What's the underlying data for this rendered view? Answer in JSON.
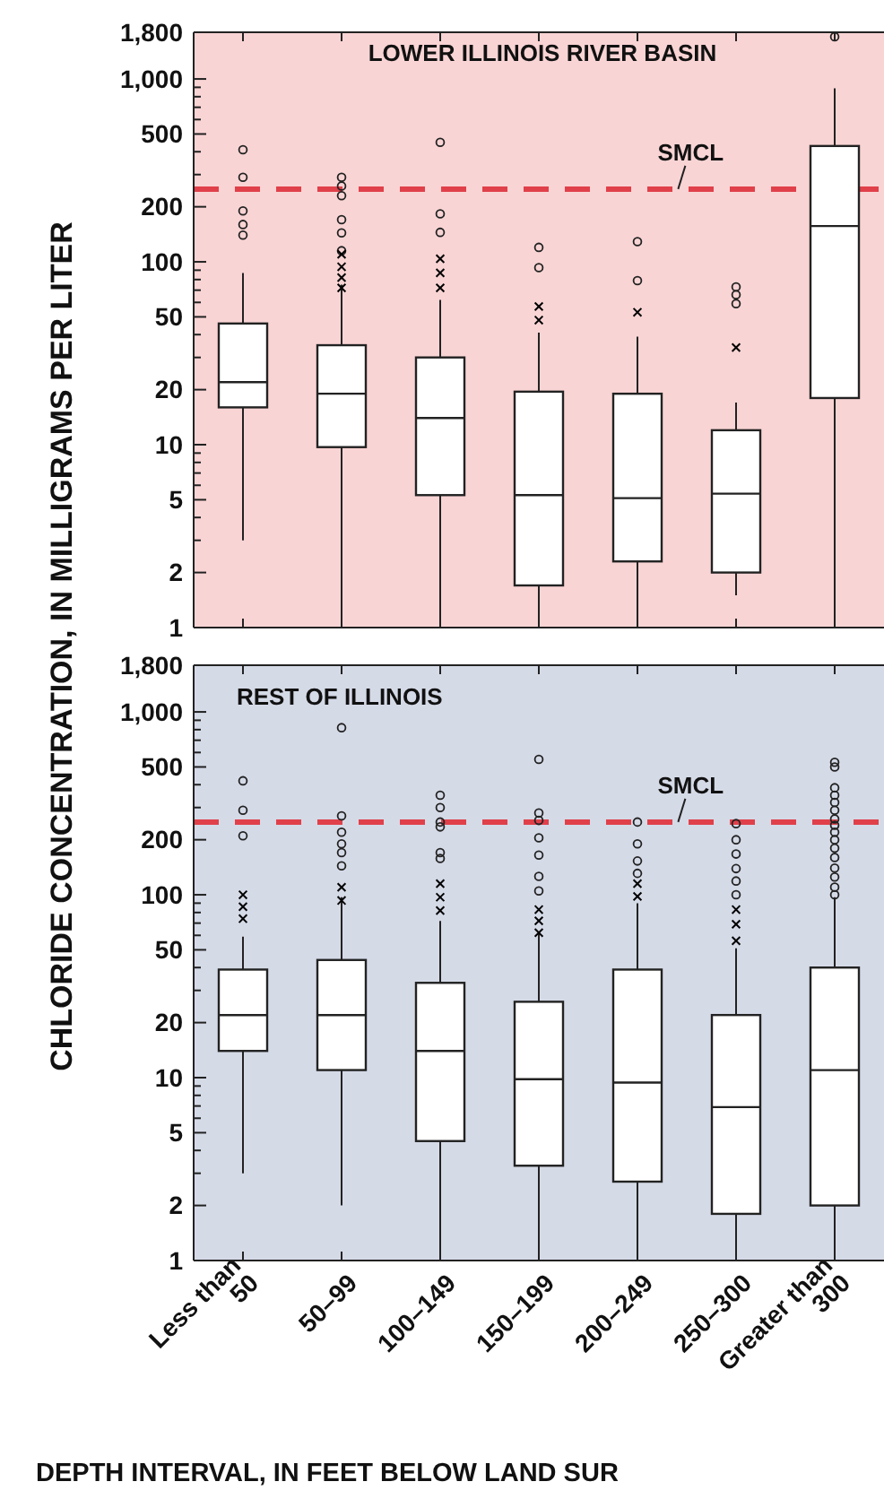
{
  "chart_data": [
    {
      "type": "box",
      "title": "LOWER ILLINOIS RIVER BASIN",
      "ylabel": "CHLORIDE CONCENTRATION, IN MILLIGRAMS PER LITER",
      "log": true,
      "tick_labels": "y",
      "categories": [
        "Less than 50",
        "50–99",
        "100–149",
        "150–199",
        "200–249",
        "250–300",
        "Greater than 300"
      ],
      "ylim": [
        1,
        1800
      ],
      "yticks": [
        1,
        2,
        5,
        10,
        20,
        50,
        100,
        200,
        500,
        {
          "value": 1000,
          "label": "1,000"
        },
        {
          "value": 1800,
          "label": "1,800"
        },
        {
          "value": 3,
          "label": null
        },
        {
          "value": 4,
          "label": null
        },
        {
          "value": 6,
          "label": null
        },
        {
          "value": 7,
          "label": null
        },
        {
          "value": 8,
          "label": null
        },
        {
          "value": 9,
          "label": null
        },
        {
          "value": 30,
          "label": null
        },
        {
          "value": 40,
          "label": null
        },
        {
          "value": 60,
          "label": null
        },
        {
          "value": 70,
          "label": null
        },
        {
          "value": 80,
          "label": null
        },
        {
          "value": 90,
          "label": null
        },
        {
          "value": 300,
          "label": null
        },
        {
          "value": 400,
          "label": null
        },
        {
          "value": 600,
          "label": null
        },
        {
          "value": 700,
          "label": null
        },
        {
          "value": 800,
          "label": null
        },
        {
          "value": 900,
          "label": null
        }
      ],
      "boxes": [
        {
          "low": 3,
          "q1": 16,
          "median": 22,
          "q3": 46,
          "high": 87,
          "outliers": [
            410,
            290,
            190,
            160,
            140
          ]
        },
        {
          "low": 1,
          "q1": 9.7,
          "median": 19,
          "q3": 35,
          "high": 75,
          "outliers": [
            290,
            260,
            230,
            170,
            144,
            115
          ]
        },
        {
          "low": 1,
          "q1": 5.3,
          "median": 14,
          "q3": 30,
          "high": 62,
          "outliers": [
            450,
            183,
            145
          ]
        },
        {
          "low": 1,
          "q1": 1.7,
          "median": 5.3,
          "q3": 19.5,
          "high": 41,
          "outliers": [
            120,
            93
          ]
        },
        {
          "low": 1,
          "q1": 2.3,
          "median": 5.1,
          "q3": 19,
          "high": 39,
          "outliers": [
            129,
            79
          ]
        },
        {
          "low": 1.5,
          "q1": 2,
          "median": 5.4,
          "q3": 12,
          "high": 17,
          "outliers": [
            73,
            66,
            59
          ]
        },
        {
          "low": 1,
          "q1": 18,
          "median": 157,
          "q3": 430,
          "high": 890,
          "outliers": [
            1700
          ]
        }
      ],
      "series": [
        {
          "type": "scatter",
          "marker": "cross",
          "color": "#000000",
          "x": [
            "50–99",
            "50–99",
            "50–99",
            "50–99",
            "100–149",
            "100–149",
            "100–149",
            "150–199",
            "150–199",
            "200–249",
            "250–300"
          ],
          "values": [
            110,
            94,
            82,
            72,
            104,
            87,
            72,
            57,
            48,
            53,
            34
          ]
        }
      ],
      "ref_lines": [
        {
          "axis": "y",
          "value": 250,
          "label": "SMCL",
          "color": "#e0404a",
          "line_style": "dashed"
        }
      ]
    },
    {
      "type": "box",
      "title": "REST OF ILLINOIS",
      "xlabel": "DEPTH INTERVAL, IN FEET BELOW LAND SUR",
      "log": true,
      "categories": [
        "Less than 50",
        "50–99",
        "100–149",
        "150–199",
        "200–249",
        "250–300",
        "Greater than 300"
      ],
      "ylim": [
        1,
        1800
      ],
      "yticks": [
        1,
        2,
        5,
        10,
        20,
        50,
        100,
        200,
        500,
        {
          "value": 1000,
          "label": "1,000"
        },
        {
          "value": 1800,
          "label": "1,800"
        },
        {
          "value": 3,
          "label": null
        },
        {
          "value": 4,
          "label": null
        },
        {
          "value": 6,
          "label": null
        },
        {
          "value": 7,
          "label": null
        },
        {
          "value": 8,
          "label": null
        },
        {
          "value": 9,
          "label": null
        },
        {
          "value": 30,
          "label": null
        },
        {
          "value": 40,
          "label": null
        },
        {
          "value": 60,
          "label": null
        },
        {
          "value": 70,
          "label": null
        },
        {
          "value": 80,
          "label": null
        },
        {
          "value": 90,
          "label": null
        },
        {
          "value": 300,
          "label": null
        },
        {
          "value": 400,
          "label": null
        },
        {
          "value": 600,
          "label": null
        },
        {
          "value": 700,
          "label": null
        },
        {
          "value": 800,
          "label": null
        },
        {
          "value": 900,
          "label": null
        }
      ],
      "boxes": [
        {
          "low": 3,
          "q1": 14,
          "median": 22,
          "q3": 39,
          "high": 59,
          "outliers": [
            420,
            290,
            210
          ]
        },
        {
          "low": 2,
          "q1": 11,
          "median": 22,
          "q3": 44,
          "high": 97,
          "outliers": [
            820,
            270,
            220,
            190,
            170,
            144
          ]
        },
        {
          "low": 1,
          "q1": 4.5,
          "median": 14,
          "q3": 33,
          "high": 72,
          "outliers": [
            350,
            300,
            250,
            235,
            170,
            158
          ]
        },
        {
          "low": 1,
          "q1": 3.3,
          "median": 9.8,
          "q3": 26,
          "high": 62,
          "outliers": [
            550,
            280,
            255,
            205,
            165,
            126,
            105
          ]
        },
        {
          "low": 1,
          "q1": 2.7,
          "median": 9.4,
          "q3": 39,
          "high": 90,
          "outliers": [
            250,
            190,
            153,
            131
          ]
        },
        {
          "low": 1,
          "q1": 1.8,
          "median": 6.9,
          "q3": 22,
          "high": 51,
          "outliers": [
            245,
            200,
            167,
            139,
            119,
            100
          ]
        },
        {
          "low": 1,
          "q1": 2,
          "median": 11,
          "q3": 40,
          "high": 97,
          "outliers": [
            530,
            500,
            385,
            350,
            320,
            290,
            260,
            240,
            220,
            200,
            180,
            160,
            140,
            125,
            110,
            100
          ]
        }
      ],
      "series": [
        {
          "type": "scatter",
          "marker": "cross",
          "color": "#000000",
          "x": [
            "Less than 50",
            "Less than 50",
            "Less than 50",
            "50–99",
            "50–99",
            "100–149",
            "100–149",
            "100–149",
            "150–199",
            "150–199",
            "150–199",
            "200–249",
            "200–249",
            "250–300",
            "250–300",
            "250–300"
          ],
          "values": [
            100,
            86,
            74,
            110,
            93,
            115,
            97,
            82,
            83,
            72,
            62,
            115,
            98,
            83,
            69,
            56
          ]
        }
      ],
      "ref_lines": [
        {
          "axis": "y",
          "value": 250,
          "label": "SMCL",
          "color": "#e0404a",
          "line_style": "dashed"
        }
      ]
    }
  ]
}
